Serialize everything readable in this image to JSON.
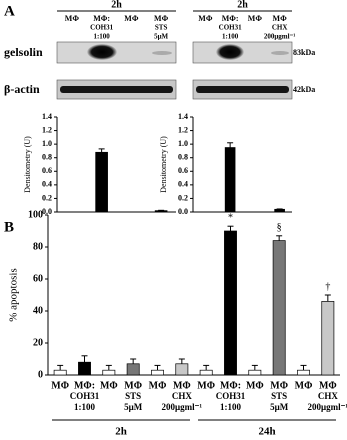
{
  "figure": {
    "panel_a": "A",
    "panel_b": "B"
  },
  "blots": {
    "rows": [
      "gelsolin",
      "β-actin"
    ],
    "markers": [
      "83kDa",
      "42kDa"
    ]
  },
  "chart_data": [
    {
      "type": "bar",
      "title": "2h",
      "ylabel": "Densitometry (U)",
      "categories": [
        [
          "MΦ"
        ],
        [
          "MΦ:",
          "COH31",
          "1:100"
        ],
        [
          "MΦ"
        ],
        [
          "MΦ",
          "STS",
          "5μM"
        ]
      ],
      "values": [
        0,
        0.88,
        0,
        0.02
      ],
      "errors": [
        0,
        0.05,
        0,
        0.005
      ],
      "color": "#000000",
      "ylim": [
        0,
        1.4
      ],
      "yticks": [
        {
          "value": 0,
          "label": "0.0"
        },
        0.2,
        0.4,
        0.6,
        0.8,
        {
          "value": 1,
          "label": "1.0"
        },
        1.2,
        1.4
      ]
    },
    {
      "type": "bar",
      "title": "2h",
      "ylabel": "Densitometry (U)",
      "categories": [
        [
          "MΦ"
        ],
        [
          "MΦ:",
          "COH31",
          "1:100"
        ],
        [
          "MΦ"
        ],
        [
          "MΦ",
          "CHX",
          "200μgml⁻¹"
        ]
      ],
      "values": [
        0,
        0.95,
        0,
        0.04
      ],
      "errors": [
        0,
        0.07,
        0,
        0.005
      ],
      "color": "#000000",
      "ylim": [
        0,
        1.4
      ],
      "yticks": [
        {
          "value": 0,
          "label": "0.0"
        },
        0.2,
        0.4,
        0.6,
        0.8,
        {
          "value": 1,
          "label": "1.0"
        },
        1.2,
        1.4
      ]
    },
    {
      "type": "bar",
      "ylabel": "% apoptosis",
      "groups": [
        "2h",
        "24h"
      ],
      "categories": [
        [
          "MΦ"
        ],
        [
          "MΦ:",
          "COH31",
          "1:100"
        ],
        [
          "MΦ"
        ],
        [
          "MΦ",
          "STS",
          "5μM"
        ],
        [
          "MΦ"
        ],
        [
          "MΦ",
          "CHX",
          "200μgml⁻¹"
        ],
        [
          "MΦ"
        ],
        [
          "MΦ:",
          "COH31",
          "1:100"
        ],
        [
          "MΦ"
        ],
        [
          "MΦ",
          "STS",
          "5μM"
        ],
        [
          "MΦ"
        ],
        [
          "MΦ",
          "CHX",
          "200μgml⁻¹"
        ]
      ],
      "values": [
        3,
        8,
        3,
        7,
        3,
        7,
        3,
        90,
        3,
        84,
        3,
        46
      ],
      "errors": [
        3,
        4,
        3,
        3,
        3,
        3,
        3,
        3,
        3,
        3,
        3,
        4
      ],
      "colors": [
        "#ffffff",
        "#000000",
        "#ffffff",
        "#777777",
        "#ffffff",
        "#c8c8c8",
        "#ffffff",
        "#000000",
        "#ffffff",
        "#777777",
        "#ffffff",
        "#c8c8c8"
      ],
      "annotations": [
        null,
        null,
        null,
        null,
        null,
        null,
        null,
        "*",
        null,
        "§",
        null,
        "†"
      ],
      "ylim": [
        0,
        100
      ],
      "yticks": [
        0,
        20,
        40,
        60,
        80,
        100
      ]
    }
  ]
}
